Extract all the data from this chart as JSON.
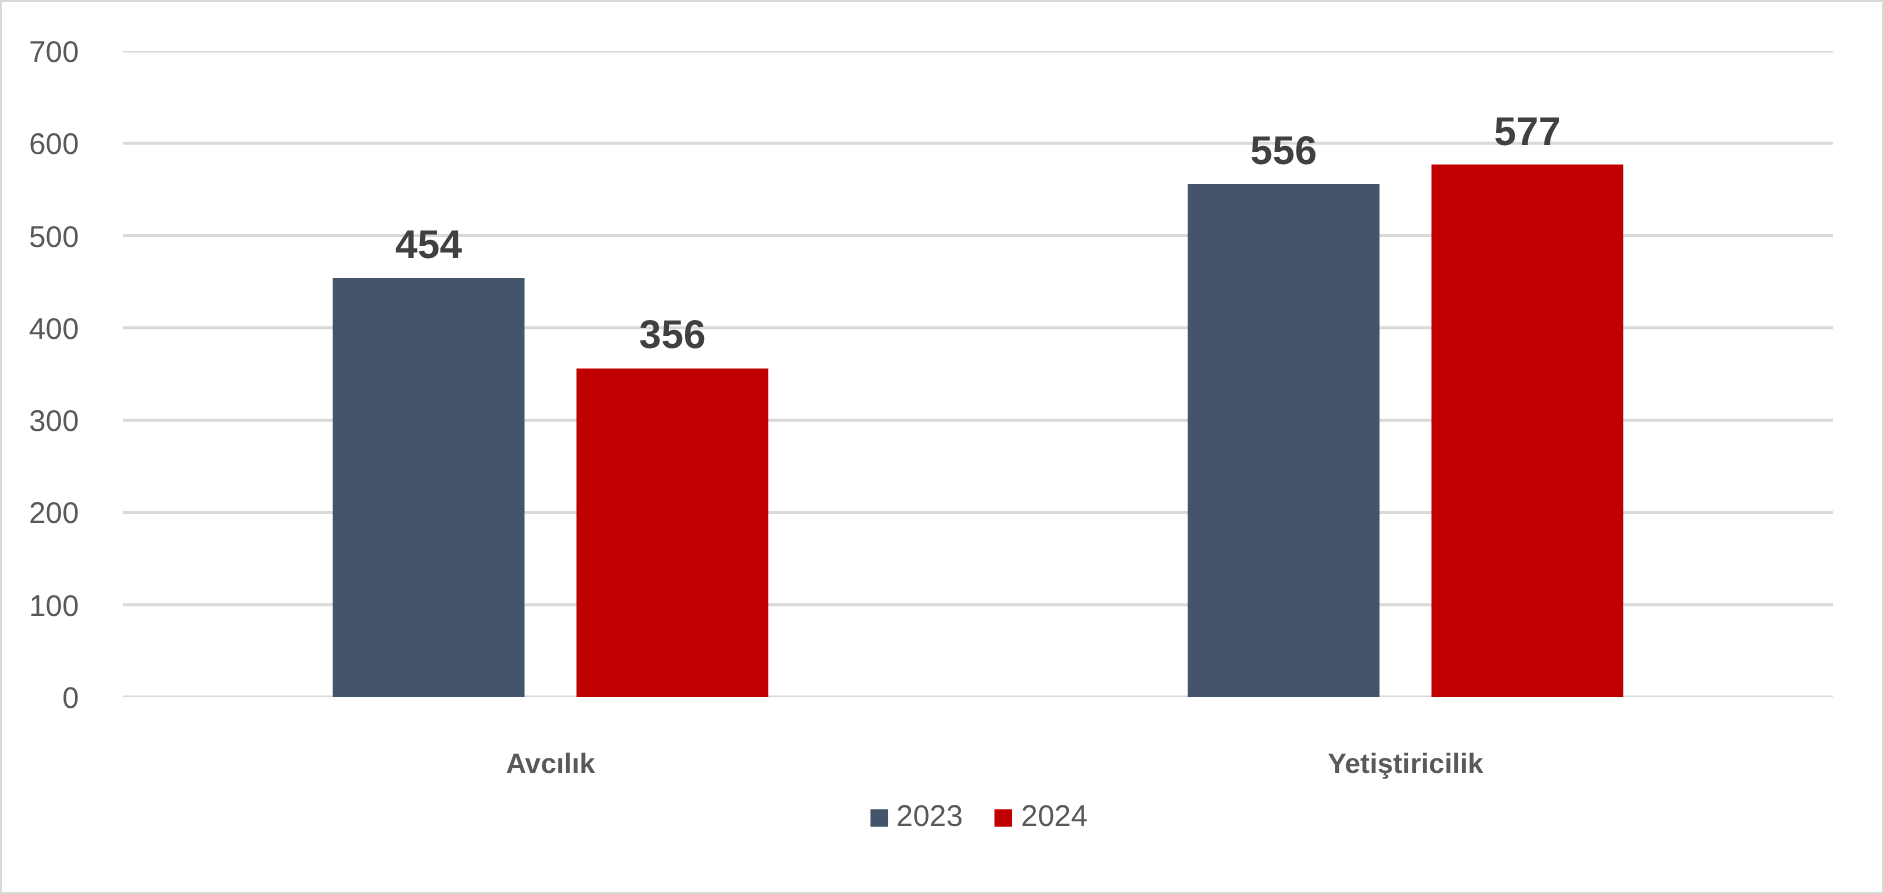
{
  "chart_data": {
    "type": "bar",
    "categories": [
      "Avcılık",
      "Yetiştiricilik"
    ],
    "series": [
      {
        "name": "2023",
        "color": "#44546a",
        "values": [
          454,
          556
        ]
      },
      {
        "name": "2024",
        "color": "#c00000",
        "values": [
          356,
          577
        ]
      }
    ],
    "ylim": [
      0,
      700
    ],
    "yticks": [
      0,
      100,
      200,
      300,
      400,
      500,
      600,
      700
    ],
    "grid": "y",
    "legend": "bottom",
    "data_labels": true
  }
}
